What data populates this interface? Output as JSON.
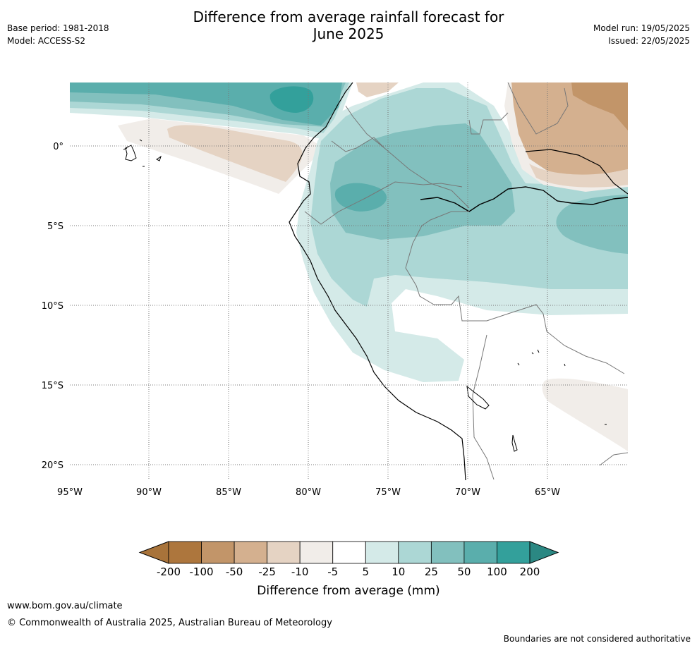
{
  "header": {
    "title_line1": "Difference from average rainfall forecast for",
    "title_line2": "June 2025",
    "base_period": "Base period: 1981-2018",
    "model": "Model: ACCESS-S2",
    "model_run": "Model run: 19/05/2025",
    "issued": "Issued: 22/05/2025"
  },
  "map": {
    "lon_labels": [
      "95°W",
      "90°W",
      "85°W",
      "80°W",
      "75°W",
      "70°W",
      "65°W"
    ],
    "lat_labels": [
      "0°",
      "5°S",
      "10°S",
      "15°S",
      "20°S"
    ]
  },
  "legend": {
    "title": "Difference from average (mm)",
    "tick_labels": [
      "-200",
      "-100",
      "-50",
      "-25",
      "-10",
      "-5",
      "5",
      "10",
      "25",
      "50",
      "100",
      "200"
    ],
    "colors": [
      "#a8733a",
      "#ad763d",
      "#c29569",
      "#d4b08f",
      "#e5d3c3",
      "#f1ede9",
      "#ffffff",
      "#d4eae8",
      "#acd7d5",
      "#82c0be",
      "#5aaeac",
      "#33a09b",
      "#2b8883"
    ]
  },
  "footer": {
    "url": "www.bom.gov.au/climate",
    "copyright": "© Commonwealth of Australia 2025, Australian Bureau of Meteorology",
    "note": "Boundaries are not considered authoritative"
  }
}
